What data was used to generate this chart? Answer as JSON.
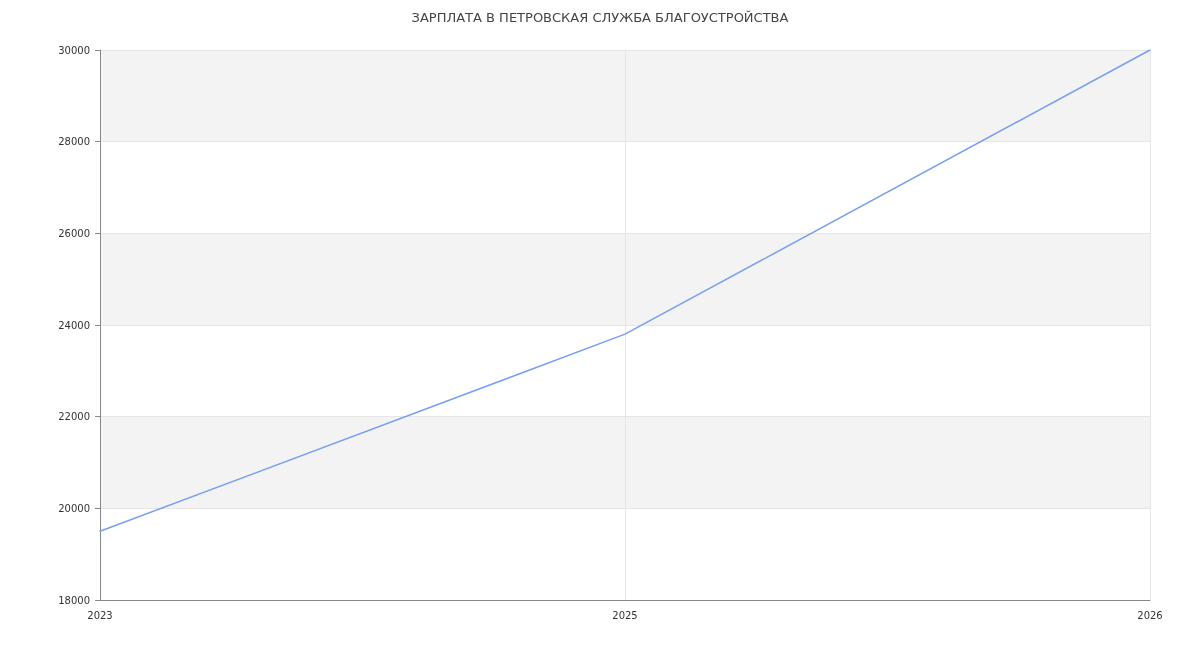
{
  "chart_data": {
    "type": "line",
    "title": "ЗАРПЛАТА В ПЕТРОВСКАЯ СЛУЖБА БЛАГОУСТРОЙСТВА",
    "categories": [
      "2023",
      "2025",
      "2026"
    ],
    "series": [
      {
        "color": "#779ff0",
        "values": [
          19500,
          23800,
          30000
        ]
      }
    ],
    "ylim": [
      18000,
      30000
    ],
    "yticks": [
      18000,
      20000,
      22000,
      24000,
      26000,
      28000,
      30000
    ],
    "grid": true,
    "marker": "none",
    "line_style": "solid"
  }
}
